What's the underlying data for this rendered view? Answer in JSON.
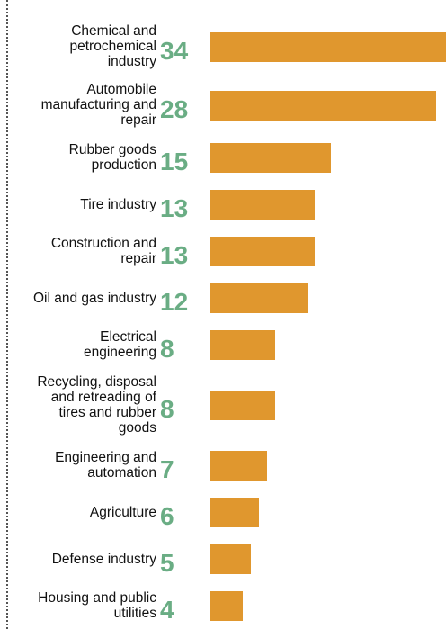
{
  "chart_data": {
    "type": "bar",
    "orientation": "horizontal",
    "color": "#e0972e",
    "categories": [
      "Chemical and petrochemical industry",
      "Automobile manufacturing and repair",
      "Rubber goods production",
      "Tire industry",
      "Construction and repair",
      "Oil and gas industry",
      "Electrical engineering",
      "Recycling, disposal and retreading of tires and rubber goods",
      "Engineering and automation",
      "Agriculture",
      "Defense industry",
      "Housing and public utilities"
    ],
    "values": [
      34,
      28,
      15,
      13,
      13,
      12,
      8,
      8,
      7,
      6,
      5,
      4
    ]
  }
}
